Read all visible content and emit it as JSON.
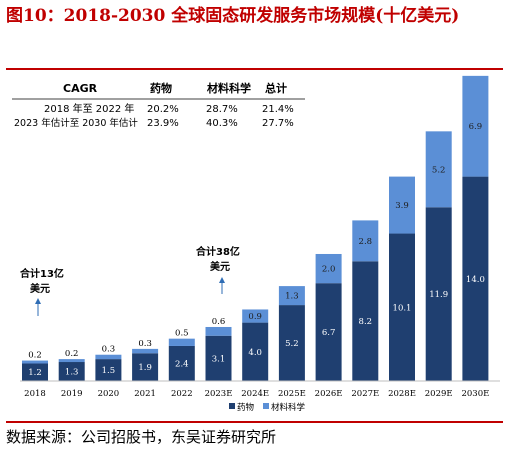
{
  "figure_title": "图10：2018-2030 全球固态研发服务市场规模(十亿美元)",
  "source": "数据来源：公司招股书，东吴证券研究所",
  "cagr_table": {
    "header": [
      "CAGR",
      "药物",
      "材料科学",
      "总计"
    ],
    "rows": [
      [
        "2018 年至 2022 年",
        "20.2%",
        "28.7%",
        "21.4%"
      ],
      [
        "2023 年估计至 2030 年估计",
        "23.9%",
        "40.3%",
        "27.7%"
      ]
    ]
  },
  "callouts": [
    {
      "id": "a1",
      "lines": [
        "合计13亿",
        "美元"
      ]
    },
    {
      "id": "a2",
      "lines": [
        "合计38亿",
        "美元"
      ]
    }
  ],
  "colors": {
    "drug": "#1f3f70",
    "material": "#5b8fd6",
    "title": "#c00000"
  },
  "chart_data": {
    "type": "bar",
    "stacked": true,
    "categories": [
      "2018",
      "2019",
      "2020",
      "2021",
      "2022",
      "2023E",
      "2024E",
      "2025E",
      "2026E",
      "2027E",
      "2028E",
      "2029E",
      "2030E"
    ],
    "series": [
      {
        "name": "药物",
        "values": [
          1.2,
          1.3,
          1.5,
          1.9,
          2.4,
          3.1,
          4.0,
          5.2,
          6.7,
          8.2,
          10.1,
          11.9,
          14.0
        ]
      },
      {
        "name": "材料科学",
        "values": [
          0.2,
          0.2,
          0.3,
          0.3,
          0.5,
          0.6,
          0.9,
          1.3,
          2.0,
          2.8,
          3.9,
          5.2,
          6.9
        ]
      }
    ],
    "legend_position": "bottom",
    "grid": false
  }
}
